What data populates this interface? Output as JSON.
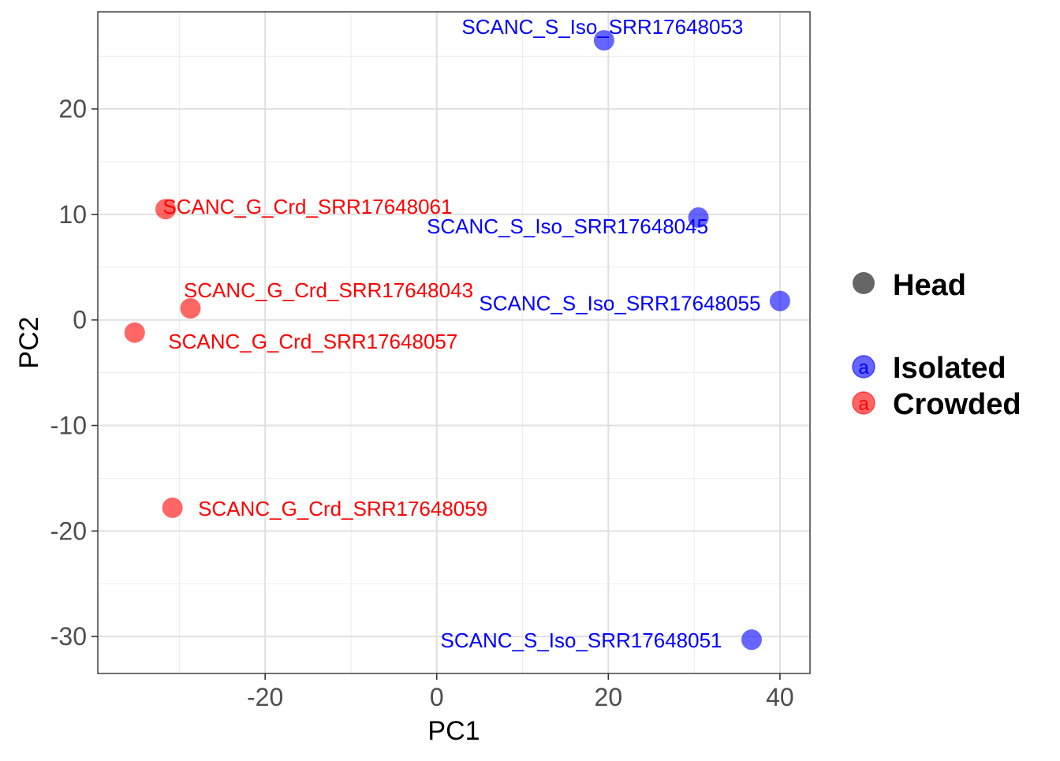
{
  "chart_data": {
    "type": "scatter",
    "xlabel": "PC1",
    "ylabel": "PC2",
    "xlim": [
      -39.5,
      43.5
    ],
    "ylim": [
      -33.5,
      29.2
    ],
    "x_ticks": [
      -20,
      0,
      20,
      40
    ],
    "y_ticks": [
      -30,
      -20,
      -10,
      0,
      10,
      20
    ],
    "grid": true,
    "legend_position": "right",
    "legend": {
      "shape_entry": "Head",
      "color_entries": [
        {
          "name": "Isolated",
          "color": "#0000ff",
          "key_glyph": "a"
        },
        {
          "name": "Crowded",
          "color": "#ff0000",
          "key_glyph": "a"
        }
      ]
    },
    "series": [
      {
        "name": "Isolated",
        "color": "#0000ff",
        "points": [
          {
            "label": "SCANC_S_Iso_SRR17648053",
            "x": 19.5,
            "y": 26.5
          },
          {
            "label": "SCANC_S_Iso_SRR17648045",
            "x": 30.5,
            "y": 9.7
          },
          {
            "label": "SCANC_S_Iso_SRR17648055",
            "x": 40.0,
            "y": 1.8
          },
          {
            "label": "SCANC_S_Iso_SRR17648051",
            "x": 36.7,
            "y": -30.3
          }
        ]
      },
      {
        "name": "Crowded",
        "color": "#ff0000",
        "points": [
          {
            "label": "SCANC_G_Crd_SRR17648061",
            "x": -31.6,
            "y": 10.5
          },
          {
            "label": "SCANC_G_Crd_SRR17648043",
            "x": -28.7,
            "y": 1.1
          },
          {
            "label": "SCANC_G_Crd_SRR17648057",
            "x": -35.2,
            "y": -1.2
          },
          {
            "label": "SCANC_G_Crd_SRR17648059",
            "x": -30.8,
            "y": -17.8
          }
        ]
      }
    ]
  }
}
